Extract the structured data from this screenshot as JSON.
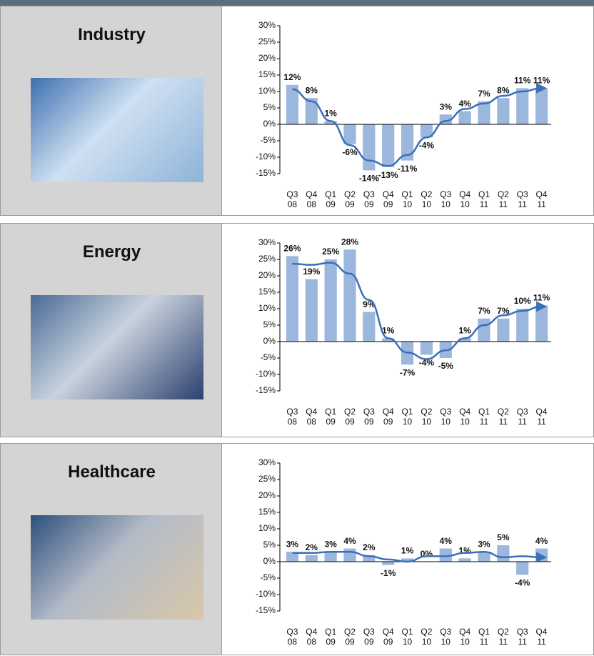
{
  "chart_data": [
    {
      "type": "bar",
      "title": "Industry",
      "categories": [
        "Q3 08",
        "Q4 08",
        "Q1 09",
        "Q2 09",
        "Q3 09",
        "Q4 09",
        "Q1 10",
        "Q2 10",
        "Q3 10",
        "Q4 10",
        "Q1 11",
        "Q2 11",
        "Q3 11",
        "Q4 11"
      ],
      "values": [
        12,
        8,
        1,
        -6,
        -14,
        -13,
        -11,
        -4,
        3,
        4,
        7,
        8,
        11,
        11
      ],
      "value_labels": [
        "12%",
        "8%",
        "1%",
        "-6%",
        "-14%",
        "-13%",
        "-11%",
        "-4%",
        "3%",
        "4%",
        "7%",
        "8%",
        "11%",
        "11%"
      ],
      "color": "#9bb7dd",
      "trend_color": "#3b6fb6",
      "ylim": [
        -15,
        30
      ],
      "yticks": [
        {
          "value": -15,
          "label": "-15%"
        },
        {
          "value": -10,
          "label": "-10%"
        },
        {
          "value": -5,
          "label": "-5%"
        },
        {
          "value": 0,
          "label": "0%"
        },
        {
          "value": 5,
          "label": "5%"
        },
        {
          "value": 10,
          "label": "10%"
        },
        {
          "value": 15,
          "label": "15%"
        },
        {
          "value": 20,
          "label": "20%"
        },
        {
          "value": 25,
          "label": "25%"
        },
        {
          "value": 30,
          "label": "30%"
        }
      ]
    },
    {
      "type": "bar",
      "title": "Energy",
      "categories": [
        "Q3 08",
        "Q4 08",
        "Q1 09",
        "Q2 09",
        "Q3 09",
        "Q4 09",
        "Q1 10",
        "Q2 10",
        "Q3 10",
        "Q4 10",
        "Q1 11",
        "Q2 11",
        "Q3 11",
        "Q4 11"
      ],
      "values": [
        26,
        19,
        25,
        28,
        9,
        1,
        -7,
        -4,
        -5,
        1,
        7,
        7,
        10,
        11
      ],
      "value_labels": [
        "26%",
        "19%",
        "25%",
        "28%",
        "9%",
        "1%",
        "-7%",
        "-4%",
        "-5%",
        "1%",
        "7%",
        "7%",
        "10%",
        "11%"
      ],
      "color": "#9bb7dd",
      "trend_color": "#3b6fb6",
      "ylim": [
        -15,
        30
      ],
      "yticks": [
        {
          "value": -15,
          "label": "-15%"
        },
        {
          "value": -10,
          "label": "-10%"
        },
        {
          "value": -5,
          "label": "-5%"
        },
        {
          "value": 0,
          "label": "0%"
        },
        {
          "value": 5,
          "label": "5%"
        },
        {
          "value": 10,
          "label": "10%"
        },
        {
          "value": 15,
          "label": "15%"
        },
        {
          "value": 20,
          "label": "20%"
        },
        {
          "value": 25,
          "label": "25%"
        },
        {
          "value": 30,
          "label": "30%"
        }
      ]
    },
    {
      "type": "bar",
      "title": "Healthcare",
      "categories": [
        "Q3 08",
        "Q4 08",
        "Q1 09",
        "Q2 09",
        "Q3 09",
        "Q4 09",
        "Q1 10",
        "Q2 10",
        "Q3 10",
        "Q4 10",
        "Q1 11",
        "Q2 11",
        "Q3 11",
        "Q4 11"
      ],
      "values": [
        3,
        2,
        3,
        4,
        2,
        -1,
        1,
        0,
        4,
        1,
        3,
        5,
        -4,
        4
      ],
      "value_labels": [
        "3%",
        "2%",
        "3%",
        "4%",
        "2%",
        "-1%",
        "1%",
        "0%",
        "4%",
        "1%",
        "3%",
        "5%",
        "-4%",
        "4%"
      ],
      "color": "#9bb7dd",
      "trend_color": "#3b6fb6",
      "ylim": [
        -15,
        30
      ],
      "yticks": [
        {
          "value": -15,
          "label": "-15%"
        },
        {
          "value": -10,
          "label": "-10%"
        },
        {
          "value": -5,
          "label": "-5%"
        },
        {
          "value": 0,
          "label": "0%"
        },
        {
          "value": 5,
          "label": "5%"
        },
        {
          "value": 10,
          "label": "10%"
        },
        {
          "value": 15,
          "label": "15%"
        },
        {
          "value": 20,
          "label": "20%"
        },
        {
          "value": 25,
          "label": "25%"
        },
        {
          "value": 30,
          "label": "30%"
        }
      ]
    }
  ]
}
